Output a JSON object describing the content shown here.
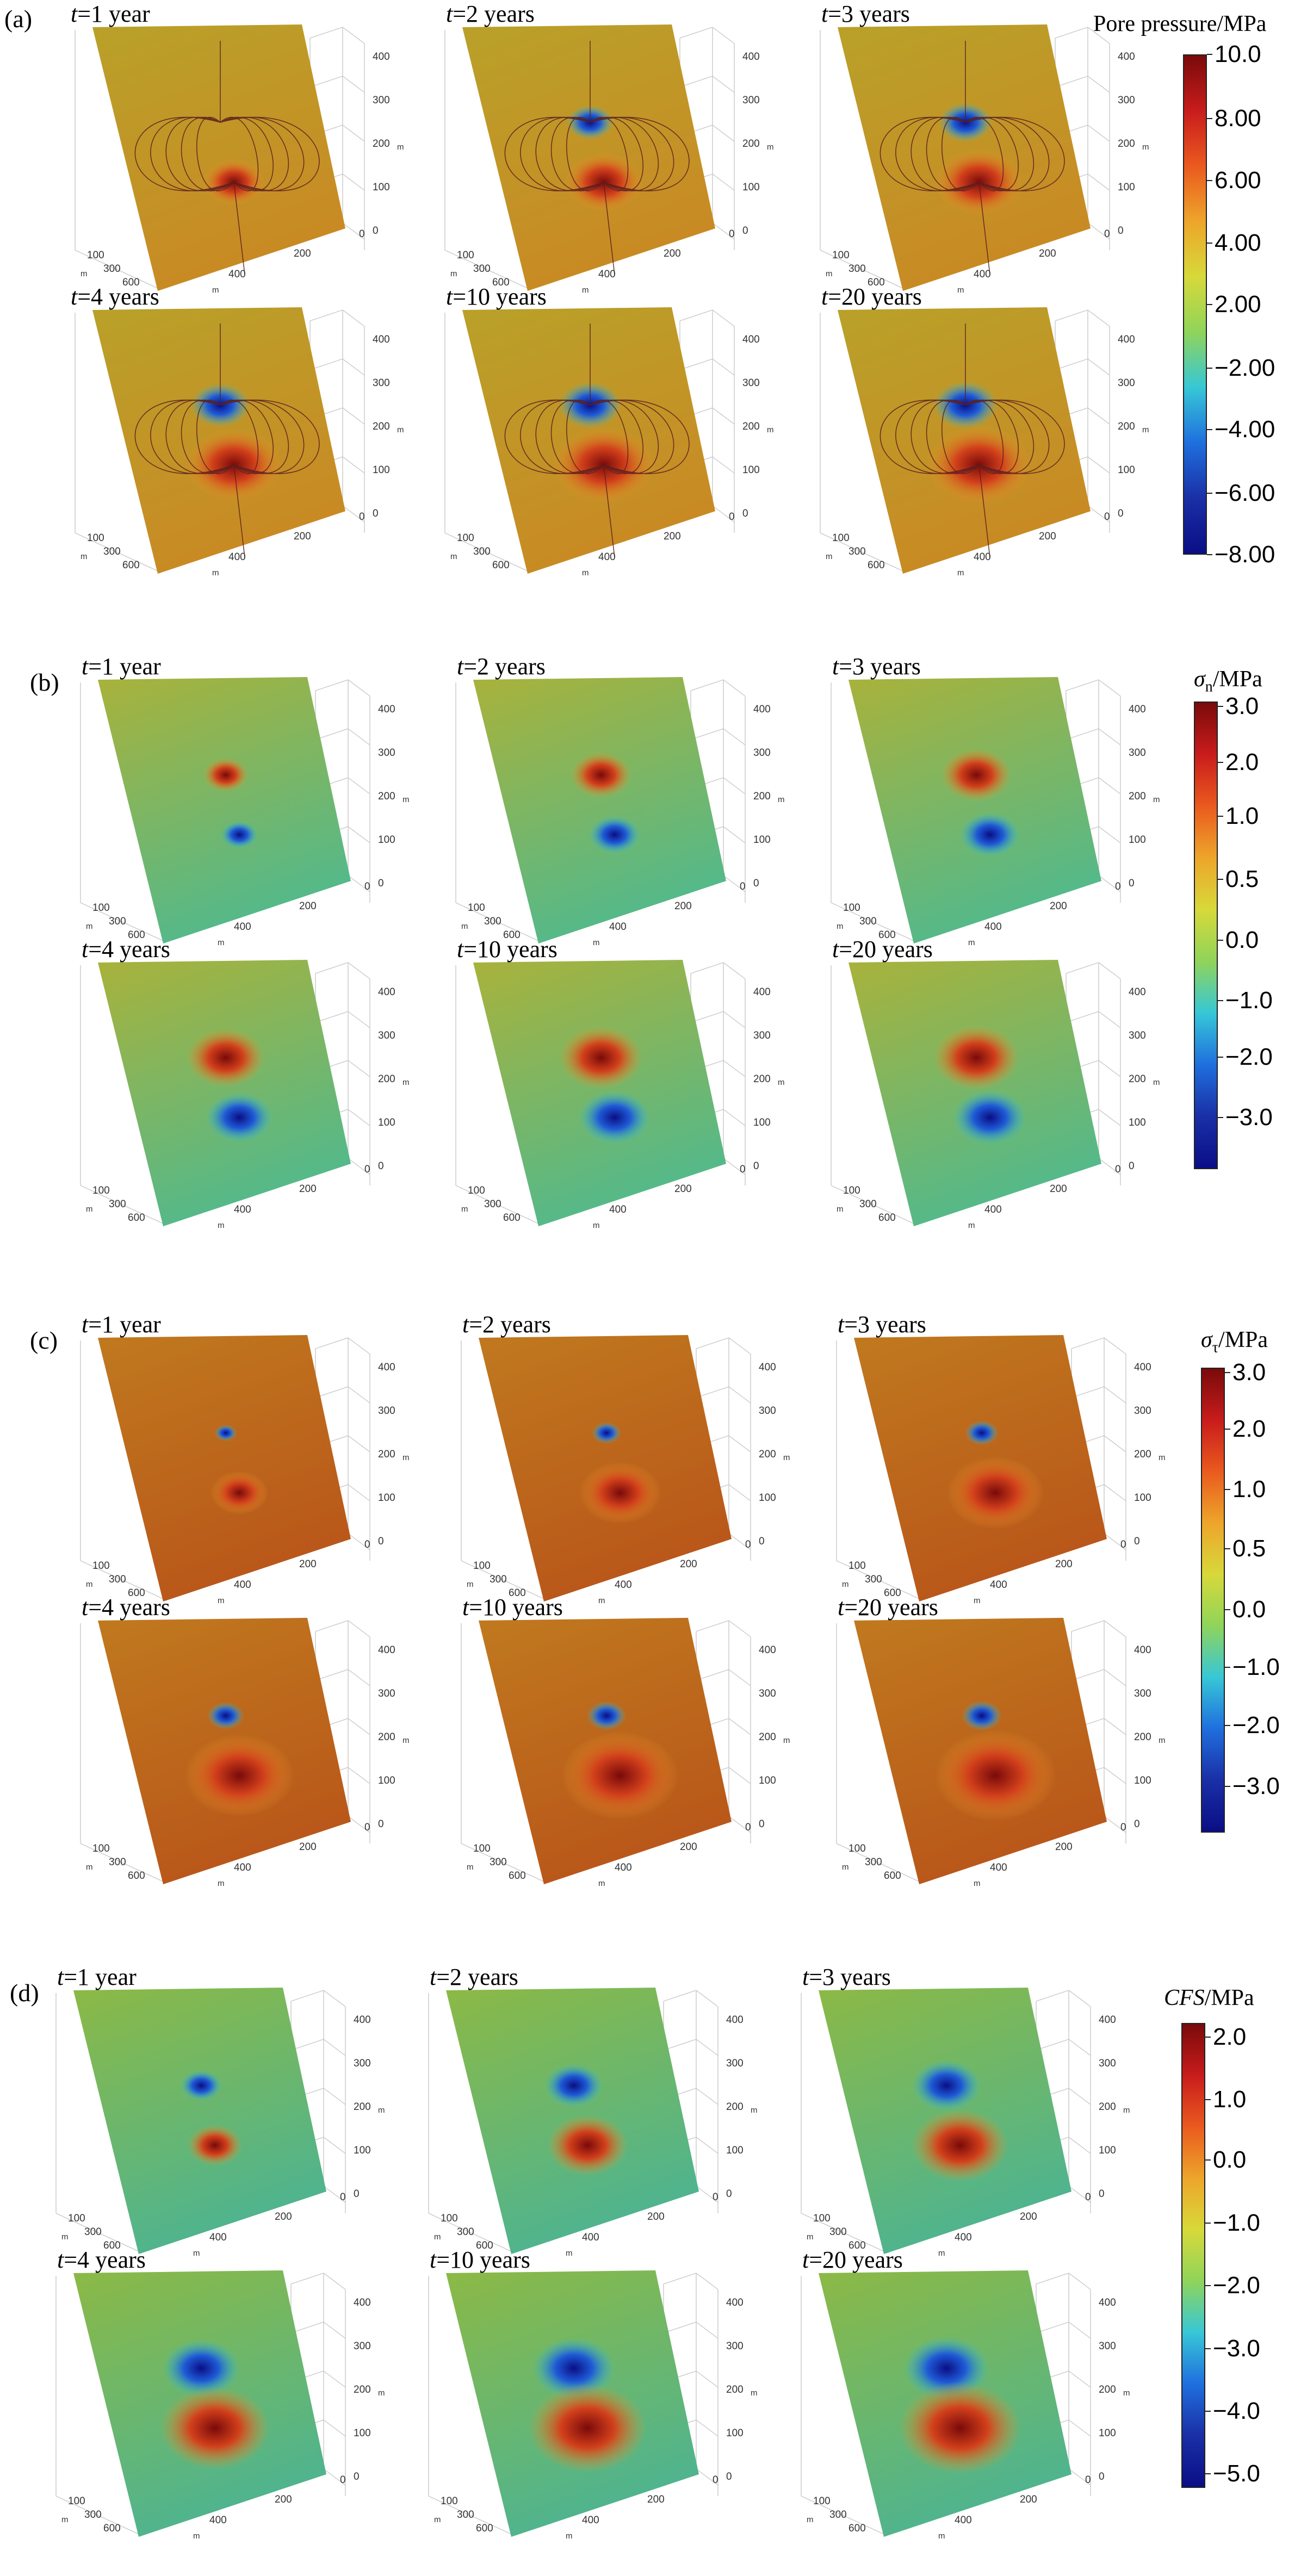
{
  "colors": {
    "field_stops": [
      "#0a0e86",
      "#1f5bd6",
      "#35c3d6",
      "#8fd45a",
      "#d9d23a",
      "#e79b2a",
      "#d2401b",
      "#7a0a0a"
    ],
    "colorbar_stops_top_to_bottom": [
      "#7a0a0a",
      "#c81c1c",
      "#ea5a1f",
      "#eda52b",
      "#d7d93a",
      "#8fd45a",
      "#37c7d6",
      "#1f6fde",
      "#1a2fa6",
      "#0a0e86"
    ],
    "streamline": "#5a2020"
  },
  "axis_ticks": {
    "left_depth": [
      "100",
      "300",
      "600"
    ],
    "bottom": [
      "400",
      "200",
      "0"
    ],
    "right_vertical": [
      "0",
      "100",
      "200",
      "300",
      "400"
    ],
    "unit": "m"
  },
  "sections": [
    {
      "letter": "(a)",
      "colorbar": {
        "title": "Pore pressure/MPa",
        "ticks": [
          "10.0",
          "8.00",
          "6.00",
          "4.00",
          "2.00",
          "−2.00",
          "−4.00",
          "−6.00",
          "−8.00"
        ]
      },
      "plots": [
        {
          "t_prefix": "t",
          "t_text": "=1 year"
        },
        {
          "t_prefix": "t",
          "t_text": "=2 years"
        },
        {
          "t_prefix": "t",
          "t_text": "=3 years"
        },
        {
          "t_prefix": "t",
          "t_text": "=4 years"
        },
        {
          "t_prefix": "t",
          "t_text": "=10 years"
        },
        {
          "t_prefix": "t",
          "t_text": "=20 years"
        }
      ]
    },
    {
      "letter": "(b)",
      "colorbar": {
        "title_symbol": "σ",
        "title_sub": "n",
        "title_rest": "/MPa",
        "ticks": [
          "3.0",
          "2.0",
          "1.0",
          "0.5",
          "0.0",
          "−1.0",
          "−2.0",
          "−3.0"
        ]
      },
      "plots": [
        {
          "t_prefix": "t",
          "t_text": "=1 year"
        },
        {
          "t_prefix": "t",
          "t_text": "=2 years"
        },
        {
          "t_prefix": "t",
          "t_text": "=3 years"
        },
        {
          "t_prefix": "t",
          "t_text": "=4 years"
        },
        {
          "t_prefix": "t",
          "t_text": "=10 years"
        },
        {
          "t_prefix": "t",
          "t_text": "=20 years"
        }
      ]
    },
    {
      "letter": "(c)",
      "colorbar": {
        "title_symbol": "σ",
        "title_sub": "τ",
        "title_rest": "/MPa",
        "ticks": [
          "3.0",
          "2.0",
          "1.0",
          "0.5",
          "0.0",
          "−1.0",
          "−2.0",
          "−3.0"
        ]
      },
      "plots": [
        {
          "t_prefix": "t",
          "t_text": "=1 year"
        },
        {
          "t_prefix": "t",
          "t_text": "=2 years"
        },
        {
          "t_prefix": "t",
          "t_text": "=3 years"
        },
        {
          "t_prefix": "t",
          "t_text": "=4 years"
        },
        {
          "t_prefix": "t",
          "t_text": "=10 years"
        },
        {
          "t_prefix": "t",
          "t_text": "=20 years"
        }
      ]
    },
    {
      "letter": "(d)",
      "colorbar": {
        "title_symbol": "CFS",
        "title_rest": "/MPa",
        "ticks": [
          "2.0",
          "1.0",
          "0.0",
          "−1.0",
          "−2.0",
          "−3.0",
          "−4.0",
          "−5.0"
        ]
      },
      "plots": [
        {
          "t_prefix": "t",
          "t_text": "=1 year"
        },
        {
          "t_prefix": "t",
          "t_text": "=2 years"
        },
        {
          "t_prefix": "t",
          "t_text": "=3 years"
        },
        {
          "t_prefix": "t",
          "t_text": "=4 years"
        },
        {
          "t_prefix": "t",
          "t_text": "=10 years"
        },
        {
          "t_prefix": "t",
          "t_text": "=20 years"
        }
      ]
    }
  ]
}
